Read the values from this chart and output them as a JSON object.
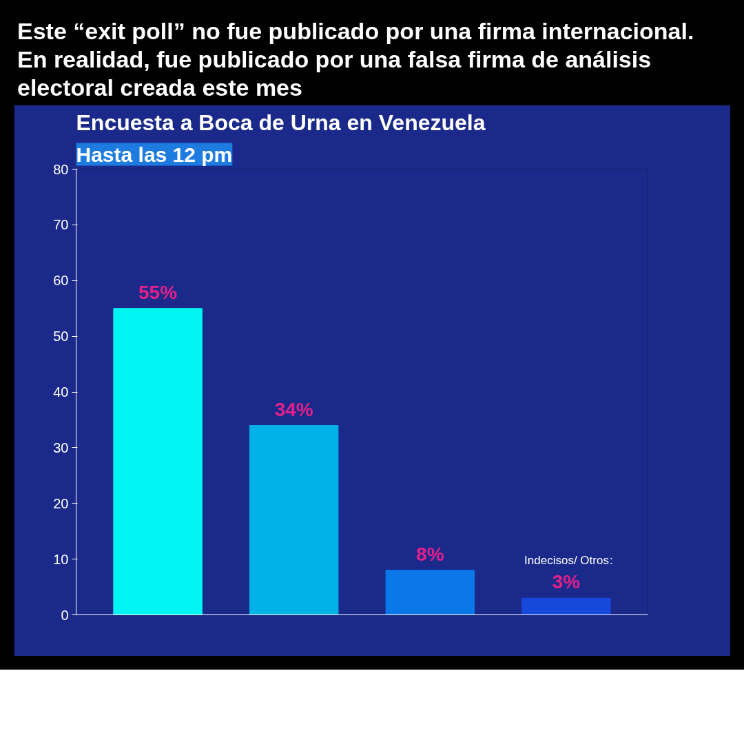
{
  "chart_data": {
    "type": "bar",
    "title": "Encuesta a Boca de Urna en Venezuela",
    "subtitle": "Hasta las 12 pm",
    "annotations": [
      "Este “exit poll” no fue publicado por una firma internacional. En realidad, fue publicado por una falsa firma de análisis electoral creada este mes",
      ":"
    ],
    "categories": [
      null,
      null,
      null,
      "Indecisos/ Otros"
    ],
    "values": [
      55,
      34,
      8,
      3
    ],
    "colors": [
      "#00f4f4",
      "#00b2e8",
      "#0a78e8",
      "#1748dc"
    ],
    "value_labels": [
      "55%",
      "34%",
      "8%",
      "3%"
    ],
    "ylim": [
      0,
      80
    ],
    "yticks": [
      0,
      10,
      20,
      30,
      40,
      50,
      60,
      70,
      80
    ],
    "grid": false,
    "tick_labels": "y"
  }
}
